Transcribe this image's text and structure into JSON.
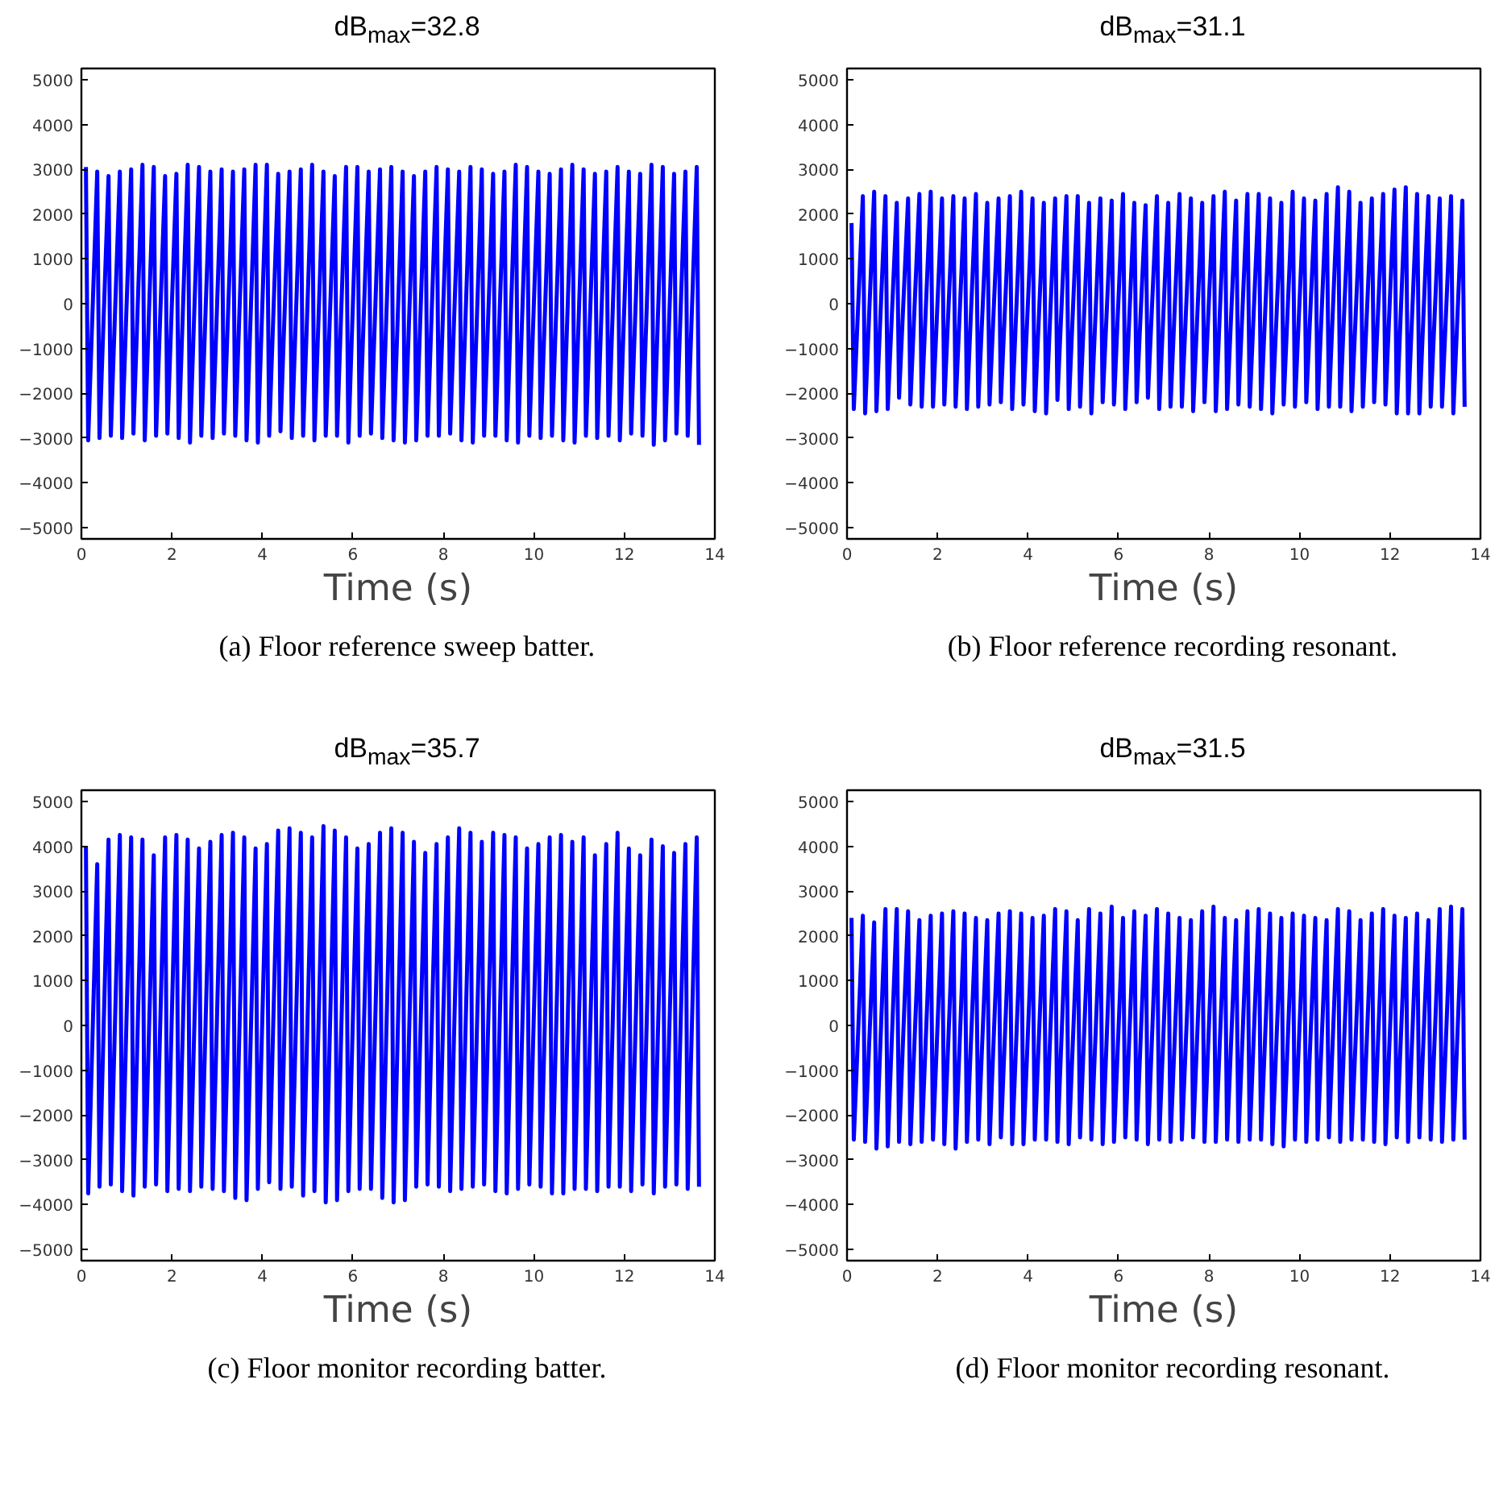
{
  "chart_data": [
    {
      "type": "line",
      "title": "dB$_{max}$=32.8",
      "xlabel": "Time (s)",
      "annotations": [
        "(a)  Floor reference sweep batter."
      ],
      "xlim": [
        0,
        14
      ],
      "ylim": [
        -5250,
        5250
      ],
      "xticks": [
        0,
        2,
        4,
        6,
        8,
        10,
        12,
        14
      ],
      "yticks": [
        -5000,
        -4000,
        -3000,
        -2000,
        -1000,
        0,
        1000,
        2000,
        3000,
        4000,
        5000
      ],
      "x": [
        0.1,
        0.15,
        0.35,
        0.4,
        0.6,
        0.65,
        0.85,
        0.9,
        1.1,
        1.15,
        1.35,
        1.4,
        1.6,
        1.65,
        1.85,
        1.9,
        2.1,
        2.15,
        2.35,
        2.4,
        2.6,
        2.65,
        2.85,
        2.9,
        3.1,
        3.15,
        3.35,
        3.4,
        3.6,
        3.65,
        3.85,
        3.9,
        4.1,
        4.15,
        4.35,
        4.4,
        4.6,
        4.65,
        4.85,
        4.9,
        5.1,
        5.15,
        5.35,
        5.4,
        5.6,
        5.65,
        5.85,
        5.9,
        6.1,
        6.15,
        6.35,
        6.4,
        6.6,
        6.65,
        6.85,
        6.9,
        7.1,
        7.15,
        7.35,
        7.4,
        7.6,
        7.65,
        7.85,
        7.9,
        8.1,
        8.15,
        8.35,
        8.4,
        8.6,
        8.65,
        8.85,
        8.9,
        9.1,
        9.15,
        9.35,
        9.4,
        9.6,
        9.65,
        9.85,
        9.9,
        10.1,
        10.15,
        10.35,
        10.4,
        10.6,
        10.65,
        10.85,
        10.9,
        11.1,
        11.15,
        11.35,
        11.4,
        11.6,
        11.65,
        11.85,
        11.9,
        12.1,
        12.15,
        12.35,
        12.4,
        12.6,
        12.65,
        12.85,
        12.9,
        13.1,
        13.15,
        13.35,
        13.4,
        13.6,
        13.65
      ],
      "series": [
        {
          "color": "#0000ff",
          "values": [
            3050,
            -3050,
            2950,
            -3000,
            2850,
            -2950,
            2950,
            -3000,
            3000,
            -2900,
            3100,
            -3050,
            3050,
            -2950,
            2850,
            -2900,
            2900,
            -3000,
            3100,
            -3100,
            3050,
            -2950,
            2950,
            -3000,
            3000,
            -2900,
            2950,
            -2950,
            3000,
            -3050,
            3100,
            -3100,
            3100,
            -2950,
            2900,
            -2850,
            2950,
            -3000,
            3000,
            -2950,
            3100,
            -3050,
            2950,
            -2950,
            2850,
            -2950,
            3050,
            -3100,
            3050,
            -2950,
            2950,
            -2900,
            3000,
            -3000,
            3050,
            -3050,
            2950,
            -3100,
            2850,
            -3050,
            2950,
            -2950,
            3050,
            -2950,
            3000,
            -2900,
            2950,
            -3050,
            3050,
            -3100,
            3000,
            -2950,
            2900,
            -2950,
            2950,
            -3050,
            3100,
            -3100,
            3050,
            -2950,
            2950,
            -3000,
            2900,
            -2950,
            3000,
            -3050,
            3100,
            -3100,
            3000,
            -2950,
            2900,
            -3000,
            2950,
            -2950,
            3050,
            -3050,
            2950,
            -2900,
            2900,
            -2950,
            3100,
            -3150,
            3050,
            -3050,
            2900,
            -2900,
            2950,
            -2950,
            3050,
            -3150
          ]
        }
      ]
    },
    {
      "type": "line",
      "title": "dB$_{max}$=31.1",
      "xlabel": "Time (s)",
      "annotations": [
        "(b)  Floor reference recording resonant."
      ],
      "xlim": [
        0,
        14
      ],
      "ylim": [
        -5250,
        5250
      ],
      "xticks": [
        0,
        2,
        4,
        6,
        8,
        10,
        12,
        14
      ],
      "yticks": [
        -5000,
        -4000,
        -3000,
        -2000,
        -1000,
        0,
        1000,
        2000,
        3000,
        4000,
        5000
      ],
      "x": [
        0.1,
        0.15,
        0.35,
        0.4,
        0.6,
        0.65,
        0.85,
        0.9,
        1.1,
        1.15,
        1.35,
        1.4,
        1.6,
        1.65,
        1.85,
        1.9,
        2.1,
        2.15,
        2.35,
        2.4,
        2.6,
        2.65,
        2.85,
        2.9,
        3.1,
        3.15,
        3.35,
        3.4,
        3.6,
        3.65,
        3.85,
        3.9,
        4.1,
        4.15,
        4.35,
        4.4,
        4.6,
        4.65,
        4.85,
        4.9,
        5.1,
        5.15,
        5.35,
        5.4,
        5.6,
        5.65,
        5.85,
        5.9,
        6.1,
        6.15,
        6.35,
        6.4,
        6.6,
        6.65,
        6.85,
        6.9,
        7.1,
        7.15,
        7.35,
        7.4,
        7.6,
        7.65,
        7.85,
        7.9,
        8.1,
        8.15,
        8.35,
        8.4,
        8.6,
        8.65,
        8.85,
        8.9,
        9.1,
        9.15,
        9.35,
        9.4,
        9.6,
        9.65,
        9.85,
        9.9,
        10.1,
        10.15,
        10.35,
        10.4,
        10.6,
        10.65,
        10.85,
        10.9,
        11.1,
        11.15,
        11.35,
        11.4,
        11.6,
        11.65,
        11.85,
        11.9,
        12.1,
        12.15,
        12.35,
        12.4,
        12.6,
        12.65,
        12.85,
        12.9,
        13.1,
        13.15,
        13.35,
        13.4,
        13.6,
        13.65
      ],
      "series": [
        {
          "color": "#0000ff",
          "values": [
            1800,
            -2350,
            2400,
            -2450,
            2500,
            -2400,
            2400,
            -2350,
            2250,
            -2100,
            2350,
            -2250,
            2450,
            -2300,
            2500,
            -2300,
            2350,
            -2250,
            2400,
            -2300,
            2350,
            -2350,
            2450,
            -2300,
            2250,
            -2250,
            2350,
            -2200,
            2400,
            -2350,
            2500,
            -2250,
            2350,
            -2400,
            2250,
            -2450,
            2350,
            -2150,
            2400,
            -2350,
            2400,
            -2300,
            2250,
            -2450,
            2350,
            -2200,
            2300,
            -2250,
            2450,
            -2350,
            2250,
            -2200,
            2200,
            -2100,
            2400,
            -2350,
            2250,
            -2300,
            2450,
            -2300,
            2350,
            -2400,
            2250,
            -2200,
            2400,
            -2400,
            2500,
            -2350,
            2300,
            -2250,
            2450,
            -2300,
            2450,
            -2350,
            2350,
            -2450,
            2250,
            -2250,
            2500,
            -2300,
            2350,
            -2200,
            2300,
            -2350,
            2450,
            -2300,
            2600,
            -2300,
            2500,
            -2400,
            2250,
            -2300,
            2350,
            -2200,
            2450,
            -2250,
            2550,
            -2450,
            2600,
            -2450,
            2450,
            -2450,
            2400,
            -2300,
            2350,
            -2300,
            2400,
            -2450,
            2300,
            -2300
          ]
        }
      ]
    },
    {
      "type": "line",
      "title": "dB$_{max}$=35.7",
      "xlabel": "Time (s)",
      "annotations": [
        "(c)  Floor monitor recording batter."
      ],
      "xlim": [
        0,
        14
      ],
      "ylim": [
        -5250,
        5250
      ],
      "xticks": [
        0,
        2,
        4,
        6,
        8,
        10,
        12,
        14
      ],
      "yticks": [
        -5000,
        -4000,
        -3000,
        -2000,
        -1000,
        0,
        1000,
        2000,
        3000,
        4000,
        5000
      ],
      "x": [
        0.1,
        0.15,
        0.35,
        0.4,
        0.6,
        0.65,
        0.85,
        0.9,
        1.1,
        1.15,
        1.35,
        1.4,
        1.6,
        1.65,
        1.85,
        1.9,
        2.1,
        2.15,
        2.35,
        2.4,
        2.6,
        2.65,
        2.85,
        2.9,
        3.1,
        3.15,
        3.35,
        3.4,
        3.6,
        3.65,
        3.85,
        3.9,
        4.1,
        4.15,
        4.35,
        4.4,
        4.6,
        4.65,
        4.85,
        4.9,
        5.1,
        5.15,
        5.35,
        5.4,
        5.6,
        5.65,
        5.85,
        5.9,
        6.1,
        6.15,
        6.35,
        6.4,
        6.6,
        6.65,
        6.85,
        6.9,
        7.1,
        7.15,
        7.35,
        7.4,
        7.6,
        7.65,
        7.85,
        7.9,
        8.1,
        8.15,
        8.35,
        8.4,
        8.6,
        8.65,
        8.85,
        8.9,
        9.1,
        9.15,
        9.35,
        9.4,
        9.6,
        9.65,
        9.85,
        9.9,
        10.1,
        10.15,
        10.35,
        10.4,
        10.6,
        10.65,
        10.85,
        10.9,
        11.1,
        11.15,
        11.35,
        11.4,
        11.6,
        11.65,
        11.85,
        11.9,
        12.1,
        12.15,
        12.35,
        12.4,
        12.6,
        12.65,
        12.85,
        12.9,
        13.1,
        13.15,
        13.35,
        13.4,
        13.6,
        13.65
      ],
      "series": [
        {
          "color": "#0000ff",
          "values": [
            4000,
            -3750,
            3600,
            -3600,
            4150,
            -3550,
            4250,
            -3700,
            4200,
            -3800,
            4150,
            -3600,
            3800,
            -3550,
            4200,
            -3700,
            4250,
            -3650,
            4150,
            -3700,
            3950,
            -3600,
            4100,
            -3650,
            4250,
            -3700,
            4300,
            -3850,
            4200,
            -3900,
            3950,
            -3650,
            4050,
            -3500,
            4350,
            -3650,
            4400,
            -3600,
            4300,
            -3800,
            4200,
            -3700,
            4450,
            -3950,
            4350,
            -3900,
            4200,
            -3700,
            3950,
            -3650,
            4050,
            -3650,
            4300,
            -3850,
            4400,
            -3950,
            4300,
            -3900,
            4100,
            -3600,
            3850,
            -3550,
            4050,
            -3600,
            4200,
            -3700,
            4400,
            -3650,
            4300,
            -3600,
            4100,
            -3550,
            4300,
            -3700,
            4250,
            -3750,
            4200,
            -3650,
            3950,
            -3550,
            4050,
            -3600,
            4200,
            -3750,
            4250,
            -3750,
            4100,
            -3650,
            4200,
            -3650,
            3800,
            -3700,
            4050,
            -3600,
            4300,
            -3600,
            3950,
            -3700,
            3800,
            -3550,
            4150,
            -3750,
            4000,
            -3600,
            3850,
            -3550,
            4050,
            -3650,
            4200,
            -3600
          ]
        }
      ]
    },
    {
      "type": "line",
      "title": "dB$_{max}$=31.5",
      "xlabel": "Time (s)",
      "annotations": [
        "(d)  Floor monitor recording resonant."
      ],
      "xlim": [
        0,
        14
      ],
      "ylim": [
        -5250,
        5250
      ],
      "xticks": [
        0,
        2,
        4,
        6,
        8,
        10,
        12,
        14
      ],
      "yticks": [
        -5000,
        -4000,
        -3000,
        -2000,
        -1000,
        0,
        1000,
        2000,
        3000,
        4000,
        5000
      ],
      "x": [
        0.1,
        0.15,
        0.35,
        0.4,
        0.6,
        0.65,
        0.85,
        0.9,
        1.1,
        1.15,
        1.35,
        1.4,
        1.6,
        1.65,
        1.85,
        1.9,
        2.1,
        2.15,
        2.35,
        2.4,
        2.6,
        2.65,
        2.85,
        2.9,
        3.1,
        3.15,
        3.35,
        3.4,
        3.6,
        3.65,
        3.85,
        3.9,
        4.1,
        4.15,
        4.35,
        4.4,
        4.6,
        4.65,
        4.85,
        4.9,
        5.1,
        5.15,
        5.35,
        5.4,
        5.6,
        5.65,
        5.85,
        5.9,
        6.1,
        6.15,
        6.35,
        6.4,
        6.6,
        6.65,
        6.85,
        6.9,
        7.1,
        7.15,
        7.35,
        7.4,
        7.6,
        7.65,
        7.85,
        7.9,
        8.1,
        8.15,
        8.35,
        8.4,
        8.6,
        8.65,
        8.85,
        8.9,
        9.1,
        9.15,
        9.35,
        9.4,
        9.6,
        9.65,
        9.85,
        9.9,
        10.1,
        10.15,
        10.35,
        10.4,
        10.6,
        10.65,
        10.85,
        10.9,
        11.1,
        11.15,
        11.35,
        11.4,
        11.6,
        11.65,
        11.85,
        11.9,
        12.1,
        12.15,
        12.35,
        12.4,
        12.6,
        12.65,
        12.85,
        12.9,
        13.1,
        13.15,
        13.35,
        13.4,
        13.6,
        13.65
      ],
      "series": [
        {
          "color": "#0000ff",
          "values": [
            2400,
            -2550,
            2450,
            -2600,
            2300,
            -2750,
            2600,
            -2700,
            2600,
            -2600,
            2550,
            -2650,
            2350,
            -2600,
            2450,
            -2550,
            2500,
            -2650,
            2550,
            -2750,
            2500,
            -2600,
            2400,
            -2550,
            2350,
            -2650,
            2500,
            -2500,
            2550,
            -2650,
            2500,
            -2650,
            2400,
            -2550,
            2450,
            -2550,
            2600,
            -2600,
            2550,
            -2650,
            2350,
            -2500,
            2600,
            -2550,
            2500,
            -2650,
            2650,
            -2600,
            2400,
            -2500,
            2550,
            -2550,
            2450,
            -2650,
            2600,
            -2550,
            2500,
            -2600,
            2400,
            -2550,
            2350,
            -2500,
            2550,
            -2600,
            2650,
            -2600,
            2400,
            -2550,
            2350,
            -2600,
            2550,
            -2550,
            2600,
            -2550,
            2500,
            -2650,
            2400,
            -2700,
            2500,
            -2550,
            2450,
            -2600,
            2400,
            -2550,
            2350,
            -2500,
            2600,
            -2600,
            2550,
            -2550,
            2350,
            -2550,
            2500,
            -2600,
            2600,
            -2650,
            2450,
            -2500,
            2400,
            -2600,
            2500,
            -2500,
            2350,
            -2550,
            2600,
            -2600,
            2650,
            -2550,
            2600,
            -2550
          ]
        }
      ]
    }
  ]
}
